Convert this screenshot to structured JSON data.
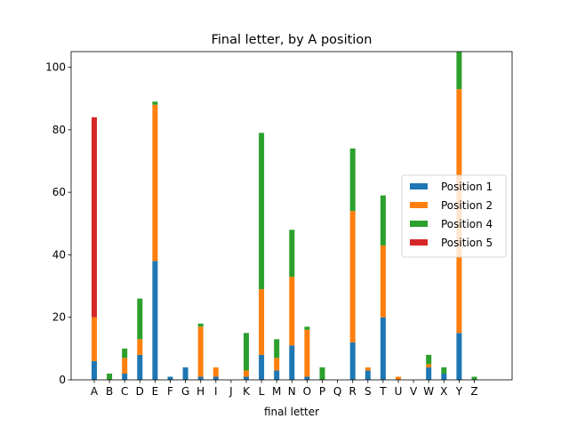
{
  "chart_data": {
    "type": "bar",
    "stacked": true,
    "title": "Final letter, by A position",
    "xlabel": "final letter",
    "ylabel": "",
    "ylim": [
      0,
      105
    ],
    "yticks": [
      0,
      20,
      40,
      60,
      80,
      100
    ],
    "grid": false,
    "legend_position": "center-right",
    "categories": [
      "A",
      "B",
      "C",
      "D",
      "E",
      "F",
      "G",
      "H",
      "I",
      "J",
      "K",
      "L",
      "M",
      "N",
      "O",
      "P",
      "Q",
      "R",
      "S",
      "T",
      "U",
      "V",
      "W",
      "X",
      "Y",
      "Z"
    ],
    "series": [
      {
        "name": "Position 1",
        "color": "#1f77b4",
        "values": [
          6,
          0,
          2,
          8,
          38,
          1,
          4,
          1,
          1,
          0,
          1,
          8,
          3,
          11,
          1,
          0,
          0,
          12,
          3,
          20,
          0,
          0,
          4,
          2,
          15,
          0
        ]
      },
      {
        "name": "Position 2",
        "color": "#ff7f0e",
        "values": [
          14,
          0,
          5,
          5,
          50,
          0,
          0,
          16,
          3,
          0,
          2,
          21,
          4,
          22,
          15,
          0,
          0,
          42,
          1,
          23,
          1,
          0,
          1,
          0,
          78,
          0
        ]
      },
      {
        "name": "Position 4",
        "color": "#2ca02c",
        "values": [
          0,
          2,
          3,
          13,
          1,
          0,
          0,
          1,
          0,
          0,
          12,
          50,
          6,
          15,
          1,
          4,
          0,
          20,
          0,
          16,
          0,
          0,
          3,
          2,
          13,
          1
        ]
      },
      {
        "name": "Position 5",
        "color": "#d62728",
        "values": [
          64,
          0,
          0,
          0,
          0,
          0,
          0,
          0,
          0,
          0,
          0,
          0,
          0,
          0,
          0,
          0,
          0,
          0,
          0,
          0,
          0,
          0,
          0,
          0,
          0,
          0
        ]
      }
    ]
  }
}
